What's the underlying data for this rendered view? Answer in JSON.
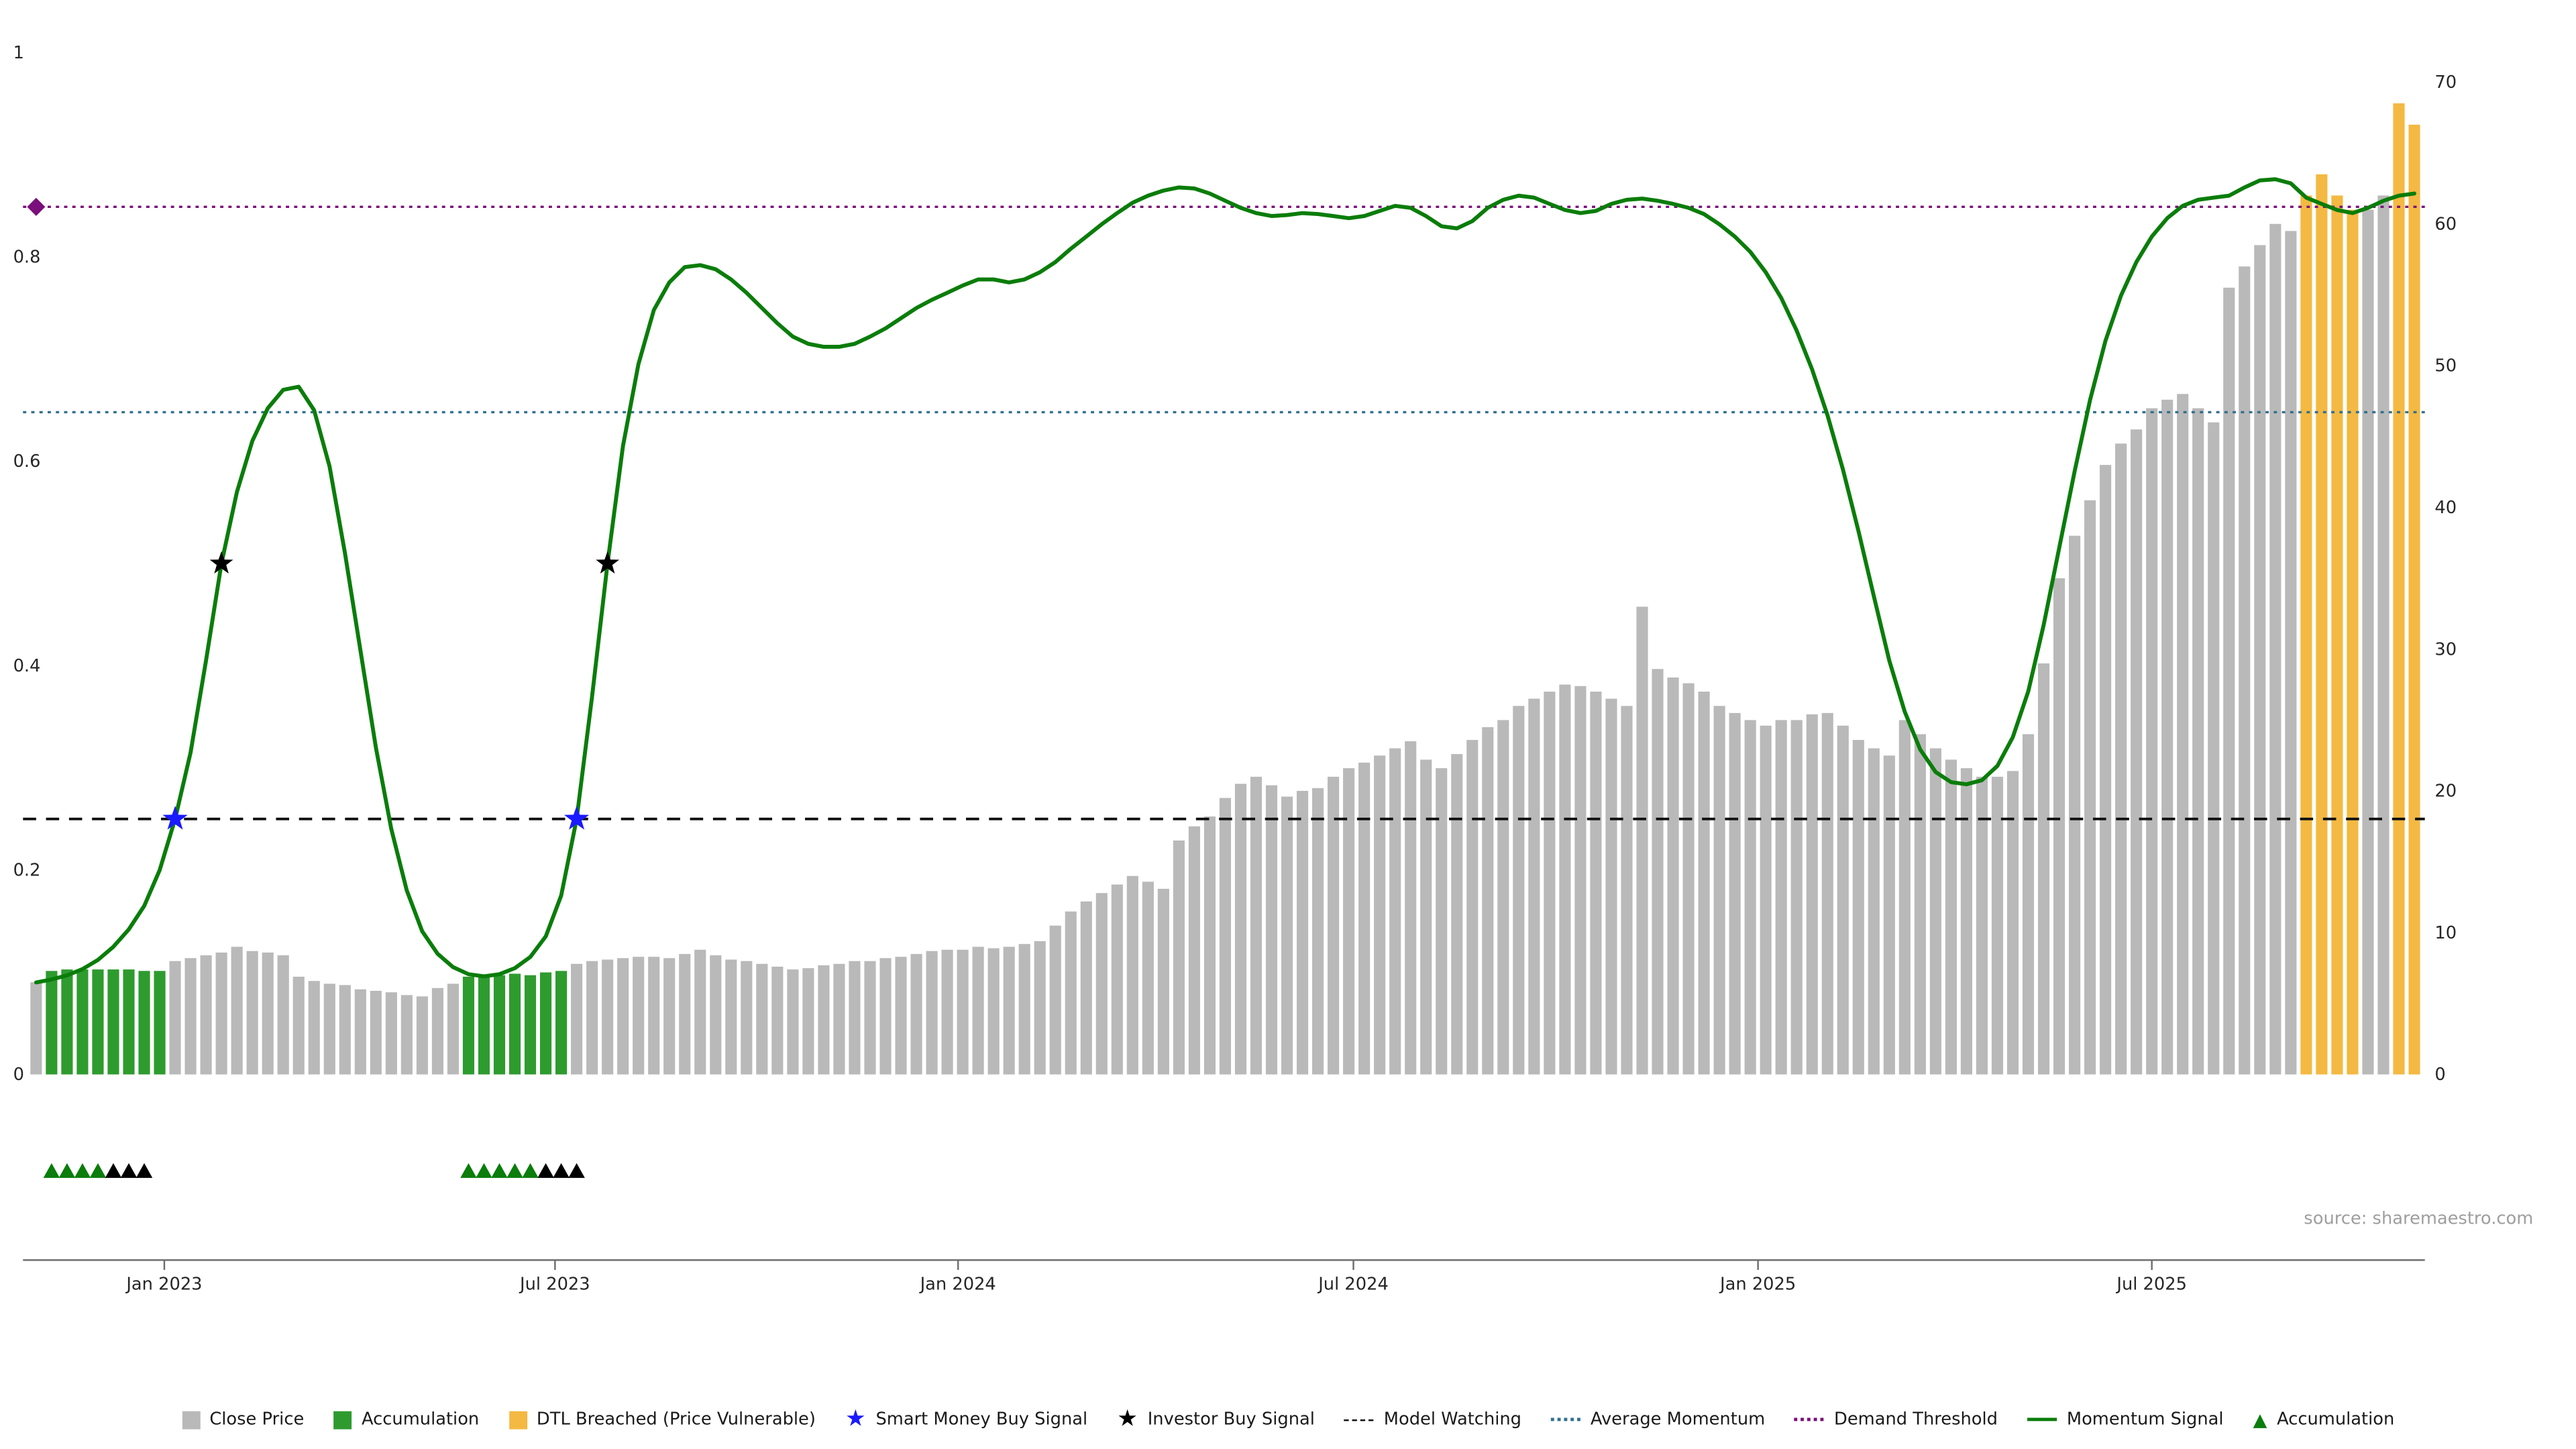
{
  "page": {
    "source_note": "source: sharemaestro.com"
  },
  "chart_data": {
    "type": "combo",
    "title": "",
    "x_axis": {
      "tick_labels": [
        "Jan 2023",
        "Jul 2023",
        "Jan 2024",
        "Jul 2024",
        "Jan 2025",
        "Jul 2025"
      ],
      "tick_indices": [
        8.3,
        33.6,
        59.7,
        85.3,
        111.5,
        137
      ]
    },
    "left_axis": {
      "tick_labels": [
        "1",
        "0.8",
        "0.6",
        "0.4",
        "0.2",
        "0"
      ],
      "tick_values": [
        1,
        0.8,
        0.6,
        0.4,
        0.2,
        0
      ],
      "range": [
        0,
        1
      ]
    },
    "right_axis": {
      "tick_labels": [
        "70",
        "60",
        "50",
        "40",
        "30",
        "20",
        "10",
        "0"
      ],
      "tick_values": [
        70,
        60,
        50,
        40,
        30,
        20,
        10,
        0
      ],
      "range": [
        0,
        70
      ]
    },
    "series": [
      {
        "name": "Close Price",
        "type": "bar",
        "axis": "right",
        "colors": {
          "normal": "#b9b9b9",
          "accumulation": "#2e9b2e",
          "dtl_breached": "#f4b942"
        },
        "accumulation_indices": [
          1,
          2,
          3,
          4,
          5,
          6,
          7,
          8,
          28,
          29,
          30,
          31,
          32,
          33,
          34
        ],
        "dtl_breached_indices": [
          147,
          148,
          149,
          150,
          153,
          154
        ],
        "values": [
          6.5,
          7.3,
          7.4,
          7.4,
          7.4,
          7.4,
          7.4,
          7.3,
          7.3,
          8.0,
          8.2,
          8.4,
          8.6,
          9.0,
          8.7,
          8.6,
          8.4,
          6.9,
          6.6,
          6.4,
          6.3,
          6.0,
          5.9,
          5.8,
          5.6,
          5.5,
          6.1,
          6.4,
          6.9,
          7.0,
          7.0,
          7.1,
          7.0,
          7.2,
          7.3,
          7.8,
          8.0,
          8.1,
          8.2,
          8.3,
          8.3,
          8.2,
          8.5,
          8.8,
          8.4,
          8.1,
          8.0,
          7.8,
          7.6,
          7.4,
          7.5,
          7.7,
          7.8,
          8.0,
          8.0,
          8.2,
          8.3,
          8.5,
          8.7,
          8.8,
          8.8,
          9.0,
          8.9,
          9.0,
          9.2,
          9.4,
          10.5,
          11.5,
          12.2,
          12.8,
          13.4,
          14.0,
          13.6,
          13.1,
          16.5,
          17.5,
          18.2,
          19.5,
          20.5,
          21.0,
          20.4,
          19.6,
          20.0,
          20.2,
          21.0,
          21.6,
          22.0,
          22.5,
          23.0,
          23.5,
          22.2,
          21.6,
          22.6,
          23.6,
          24.5,
          25.0,
          26.0,
          26.5,
          27.0,
          27.5,
          27.4,
          27.0,
          26.5,
          26.0,
          33.0,
          28.6,
          28.0,
          27.6,
          27.0,
          26.0,
          25.5,
          25.0,
          24.6,
          25.0,
          25.0,
          25.4,
          25.5,
          24.6,
          23.6,
          23.0,
          22.5,
          25.0,
          24.0,
          23.0,
          22.2,
          21.6,
          21.0,
          21.0,
          21.4,
          24.0,
          29.0,
          35.0,
          38.0,
          40.5,
          43.0,
          44.5,
          45.5,
          47.0,
          47.6,
          48.0,
          47.0,
          46.0,
          55.5,
          57.0,
          58.5,
          60.0,
          59.5,
          62.0,
          63.5,
          62.0,
          61.0,
          61.0,
          62.0,
          68.5,
          67.0
        ]
      },
      {
        "name": "Momentum Signal",
        "type": "line",
        "axis": "left",
        "color": "#0a7d0a",
        "values": [
          0.09,
          0.093,
          0.097,
          0.103,
          0.112,
          0.125,
          0.142,
          0.165,
          0.2,
          0.25,
          0.315,
          0.405,
          0.5,
          0.57,
          0.62,
          0.652,
          0.67,
          0.673,
          0.65,
          0.595,
          0.51,
          0.415,
          0.32,
          0.24,
          0.18,
          0.14,
          0.118,
          0.105,
          0.098,
          0.096,
          0.098,
          0.104,
          0.115,
          0.135,
          0.175,
          0.25,
          0.37,
          0.5,
          0.615,
          0.695,
          0.748,
          0.775,
          0.79,
          0.792,
          0.788,
          0.778,
          0.765,
          0.75,
          0.735,
          0.722,
          0.715,
          0.712,
          0.712,
          0.715,
          0.722,
          0.73,
          0.74,
          0.75,
          0.758,
          0.765,
          0.772,
          0.778,
          0.778,
          0.775,
          0.778,
          0.785,
          0.795,
          0.808,
          0.82,
          0.832,
          0.843,
          0.853,
          0.86,
          0.865,
          0.868,
          0.867,
          0.862,
          0.855,
          0.848,
          0.843,
          0.84,
          0.841,
          0.843,
          0.842,
          0.84,
          0.838,
          0.84,
          0.845,
          0.85,
          0.848,
          0.84,
          0.83,
          0.828,
          0.835,
          0.848,
          0.856,
          0.86,
          0.858,
          0.852,
          0.846,
          0.843,
          0.845,
          0.852,
          0.856,
          0.857,
          0.855,
          0.852,
          0.848,
          0.842,
          0.832,
          0.82,
          0.805,
          0.785,
          0.76,
          0.728,
          0.69,
          0.645,
          0.592,
          0.532,
          0.468,
          0.405,
          0.355,
          0.318,
          0.296,
          0.286,
          0.284,
          0.288,
          0.302,
          0.33,
          0.375,
          0.44,
          0.515,
          0.59,
          0.66,
          0.718,
          0.762,
          0.795,
          0.82,
          0.838,
          0.85,
          0.856,
          0.858,
          0.86,
          0.868,
          0.875,
          0.876,
          0.872,
          0.858,
          0.852,
          0.846,
          0.843,
          0.848,
          0.855,
          0.86,
          0.862
        ]
      }
    ],
    "hlines": [
      {
        "name": "Model Watching",
        "value": 0.25,
        "color": "#111111",
        "style": "dashed"
      },
      {
        "name": "Average Momentum",
        "value": 0.648,
        "color": "#31708e",
        "style": "dotted"
      },
      {
        "name": "Demand Threshold",
        "value": 0.849,
        "color": "#7b0f7b",
        "style": "dotted"
      }
    ],
    "markers": {
      "smart_money_buy": {
        "color": "#1a1aff",
        "points": [
          {
            "index": 9,
            "value": 0.25
          },
          {
            "index": 35,
            "value": 0.25
          }
        ]
      },
      "investor_buy": {
        "color": "#000000",
        "points": [
          {
            "index": 12,
            "value": 0.5
          },
          {
            "index": 37,
            "value": 0.5
          }
        ]
      },
      "demand_threshold_diamond": {
        "color": "#7b0f7b",
        "point": {
          "index": 0,
          "value": 0.849
        }
      }
    },
    "accumulation_rows": {
      "green": {
        "color": "#0a7d0a",
        "indices": [
          1,
          2,
          3,
          4,
          28,
          29,
          30,
          31,
          32
        ]
      },
      "black": {
        "color": "#000000",
        "indices": [
          5,
          6,
          7,
          33,
          34,
          35
        ]
      }
    }
  },
  "legend": {
    "items": [
      {
        "type": "square",
        "label": "Close Price",
        "color": "#b9b9b9"
      },
      {
        "type": "square",
        "label": "Accumulation",
        "color": "#2e9b2e"
      },
      {
        "type": "square",
        "label": "DTL Breached (Price Vulnerable)",
        "color": "#f4b942"
      },
      {
        "type": "star",
        "label": "Smart Money Buy Signal",
        "color": "#1a1aff"
      },
      {
        "type": "star",
        "label": "Investor Buy Signal",
        "color": "#000000"
      },
      {
        "type": "dash",
        "label": "Model Watching",
        "color": "#111111"
      },
      {
        "type": "dots",
        "label": "Average Momentum",
        "color": "#31708e"
      },
      {
        "type": "dots",
        "label": "Demand Threshold",
        "color": "#7b0f7b"
      },
      {
        "type": "line",
        "label": "Momentum Signal",
        "color": "#0a7d0a"
      },
      {
        "type": "triangle",
        "label": "Accumulation",
        "color": "#0a7d0a"
      }
    ]
  }
}
